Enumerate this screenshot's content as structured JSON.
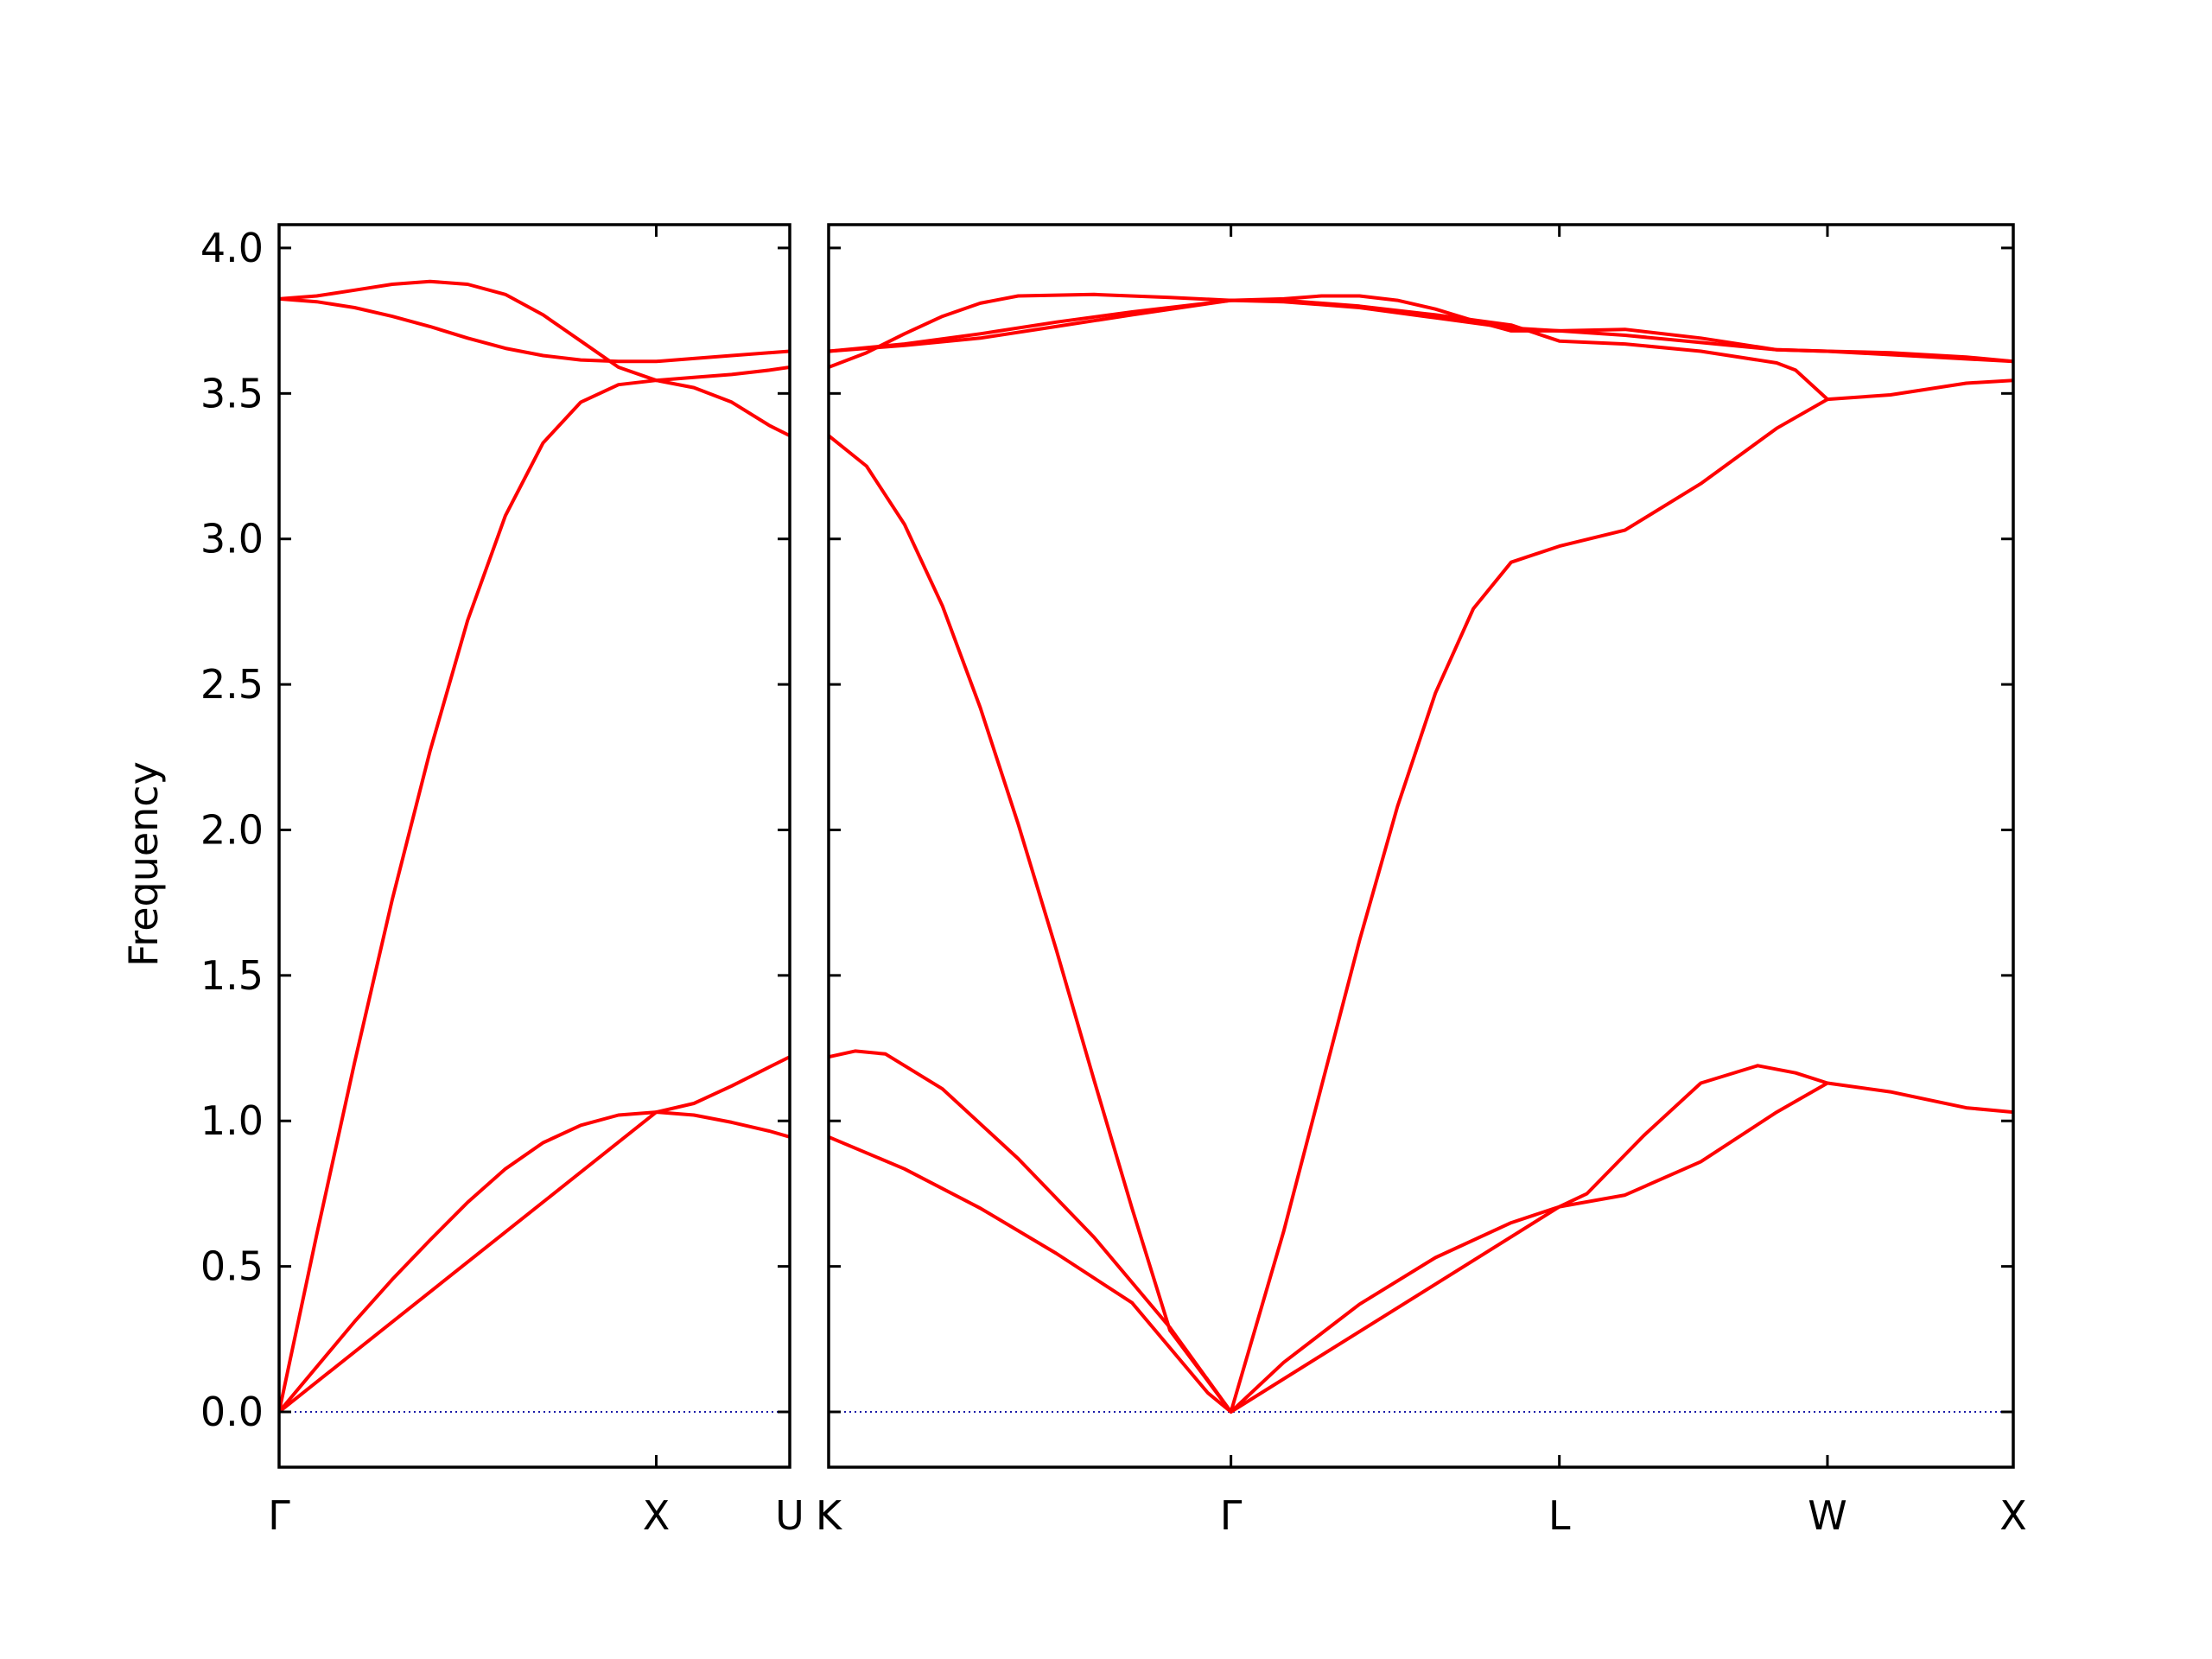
{
  "chart_data": {
    "type": "line",
    "title": "",
    "xlabel": "",
    "ylabel": "Frequency",
    "ylim": [
      -0.19,
      4.08
    ],
    "yticks": [
      0.0,
      0.5,
      1.0,
      1.5,
      2.0,
      2.5,
      3.0,
      3.5,
      4.0
    ],
    "ytick_labels": [
      "0.0",
      "0.5",
      "1.0",
      "1.5",
      "2.0",
      "2.5",
      "3.0",
      "3.5",
      "4.0"
    ],
    "line_color": "#ff0000",
    "zero_line_color": "#1a1aa8",
    "grid": false,
    "segments": [
      {
        "xlim": [
          0,
          1.354
        ],
        "ticks": [
          {
            "x": 0,
            "label": "Γ"
          },
          {
            "x": 1.0,
            "label": "X"
          },
          {
            "x": 1.354,
            "label": "U"
          }
        ],
        "bands": [
          [
            [
              0,
              0
            ],
            [
              0.1,
              0.155
            ],
            [
              0.2,
              0.31
            ],
            [
              0.3,
              0.455
            ],
            [
              0.4,
              0.59
            ],
            [
              0.5,
              0.72
            ],
            [
              0.6,
              0.835
            ],
            [
              0.7,
              0.925
            ],
            [
              0.8,
              0.985
            ],
            [
              0.9,
              1.02
            ],
            [
              1.0,
              1.03
            ],
            [
              1.1,
              1.02
            ],
            [
              1.2,
              0.995
            ],
            [
              1.3,
              0.965
            ],
            [
              1.354,
              0.945
            ]
          ],
          [
            [
              0,
              0
            ],
            [
              1.0,
              1.03
            ],
            [
              1.1,
              1.06
            ],
            [
              1.2,
              1.12
            ],
            [
              1.3,
              1.185
            ],
            [
              1.354,
              1.22
            ]
          ],
          [
            [
              0,
              0
            ],
            [
              0.1,
              0.61
            ],
            [
              0.2,
              1.2
            ],
            [
              0.3,
              1.76
            ],
            [
              0.4,
              2.27
            ],
            [
              0.5,
              2.72
            ],
            [
              0.6,
              3.08
            ],
            [
              0.7,
              3.33
            ],
            [
              0.8,
              3.47
            ],
            [
              0.9,
              3.53
            ],
            [
              1.0,
              3.545
            ],
            [
              1.1,
              3.52
            ],
            [
              1.2,
              3.47
            ],
            [
              1.3,
              3.39
            ],
            [
              1.354,
              3.355
            ]
          ],
          [
            [
              0,
              3.825
            ],
            [
              0.1,
              3.815
            ],
            [
              0.2,
              3.795
            ],
            [
              0.3,
              3.765
            ],
            [
              0.4,
              3.73
            ],
            [
              0.5,
              3.69
            ],
            [
              0.6,
              3.655
            ],
            [
              0.7,
              3.63
            ],
            [
              0.8,
              3.615
            ],
            [
              0.9,
              3.61
            ],
            [
              1.0,
              3.61
            ],
            [
              1.1,
              3.62
            ],
            [
              1.2,
              3.63
            ],
            [
              1.3,
              3.64
            ],
            [
              1.354,
              3.645
            ]
          ],
          [
            [
              0,
              3.825
            ],
            [
              0.1,
              3.835
            ],
            [
              0.2,
              3.855
            ],
            [
              0.3,
              3.875
            ],
            [
              0.4,
              3.885
            ],
            [
              0.5,
              3.875
            ],
            [
              0.6,
              3.84
            ],
            [
              0.7,
              3.77
            ],
            [
              0.8,
              3.68
            ],
            [
              0.9,
              3.59
            ],
            [
              1.0,
              3.545
            ],
            [
              1.1,
              3.555
            ],
            [
              1.2,
              3.565
            ],
            [
              1.3,
              3.58
            ],
            [
              1.354,
              3.59
            ]
          ]
        ]
      },
      {
        "xlim": [
          0,
          3.124
        ],
        "ticks": [
          {
            "x": 0,
            "label": "K"
          },
          {
            "x": 1.061,
            "label": "Γ"
          },
          {
            "x": 1.927,
            "label": "L"
          },
          {
            "x": 2.634,
            "label": "W"
          },
          {
            "x": 3.124,
            "label": "X"
          }
        ],
        "bands": [
          [
            [
              0,
              0.945
            ],
            [
              0.2,
              0.835
            ],
            [
              0.4,
              0.7
            ],
            [
              0.6,
              0.545
            ],
            [
              0.8,
              0.375
            ],
            [
              1.0,
              0.065
            ],
            [
              1.061,
              0
            ],
            [
              1.2,
              0.17
            ],
            [
              1.4,
              0.37
            ],
            [
              1.6,
              0.53
            ],
            [
              1.8,
              0.65
            ],
            [
              1.927,
              0.705
            ],
            [
              2.1,
              0.745
            ],
            [
              2.3,
              0.86
            ],
            [
              2.5,
              1.03
            ],
            [
              2.634,
              1.13
            ],
            [
              2.8,
              1.1
            ],
            [
              3.0,
              1.045
            ],
            [
              3.124,
              1.03
            ]
          ],
          [
            [
              0,
              1.22
            ],
            [
              0.07,
              1.24
            ],
            [
              0.15,
              1.23
            ],
            [
              0.3,
              1.11
            ],
            [
              0.5,
              0.87
            ],
            [
              0.7,
              0.6
            ],
            [
              0.9,
              0.29
            ],
            [
              1.061,
              0
            ],
            [
              1.927,
              0.705
            ],
            [
              2.0,
              0.75
            ],
            [
              2.15,
              0.95
            ],
            [
              2.3,
              1.13
            ],
            [
              2.45,
              1.19
            ],
            [
              2.55,
              1.165
            ],
            [
              2.634,
              1.13
            ]
          ],
          [
            [
              0,
              3.355
            ],
            [
              0.1,
              3.25
            ],
            [
              0.2,
              3.05
            ],
            [
              0.3,
              2.77
            ],
            [
              0.4,
              2.42
            ],
            [
              0.5,
              2.02
            ],
            [
              0.6,
              1.59
            ],
            [
              0.7,
              1.14
            ],
            [
              0.8,
              0.7
            ],
            [
              0.9,
              0.28
            ],
            [
              1.061,
              0
            ],
            [
              1.2,
              0.62
            ],
            [
              1.3,
              1.12
            ],
            [
              1.4,
              1.62
            ],
            [
              1.5,
              2.08
            ],
            [
              1.6,
              2.47
            ],
            [
              1.7,
              2.76
            ],
            [
              1.8,
              2.92
            ],
            [
              1.927,
              2.975
            ],
            [
              2.1,
              3.03
            ],
            [
              2.3,
              3.19
            ],
            [
              2.5,
              3.38
            ],
            [
              2.634,
              3.48
            ],
            [
              2.8,
              3.495
            ],
            [
              3.0,
              3.535
            ],
            [
              3.124,
              3.545
            ]
          ],
          [
            [
              0,
              3.59
            ],
            [
              0.1,
              3.64
            ],
            [
              0.2,
              3.705
            ],
            [
              0.3,
              3.765
            ],
            [
              0.4,
              3.81
            ],
            [
              0.5,
              3.835
            ],
            [
              0.7,
              3.84
            ],
            [
              0.9,
              3.83
            ],
            [
              1.061,
              3.82
            ],
            [
              1.2,
              3.825
            ],
            [
              1.3,
              3.835
            ],
            [
              1.4,
              3.835
            ],
            [
              1.5,
              3.82
            ],
            [
              1.6,
              3.79
            ],
            [
              1.7,
              3.75
            ],
            [
              1.8,
              3.715
            ],
            [
              1.927,
              3.715
            ],
            [
              2.1,
              3.72
            ],
            [
              2.3,
              3.69
            ],
            [
              2.5,
              3.65
            ],
            [
              2.634,
              3.645
            ],
            [
              2.8,
              3.64
            ],
            [
              3.0,
              3.625
            ],
            [
              3.124,
              3.61
            ]
          ],
          [
            [
              0,
              3.645
            ],
            [
              0.2,
              3.67
            ],
            [
              0.4,
              3.705
            ],
            [
              0.6,
              3.745
            ],
            [
              0.8,
              3.78
            ],
            [
              1.061,
              3.82
            ],
            [
              1.2,
              3.815
            ],
            [
              1.4,
              3.795
            ],
            [
              1.6,
              3.76
            ],
            [
              1.8,
              3.725
            ],
            [
              1.927,
              3.715
            ],
            [
              2.1,
              3.7
            ],
            [
              2.3,
              3.675
            ],
            [
              2.5,
              3.65
            ],
            [
              2.634,
              3.645
            ],
            [
              3.124,
              3.61
            ]
          ],
          [
            [
              0,
              3.645
            ],
            [
              0.2,
              3.665
            ],
            [
              0.4,
              3.69
            ],
            [
              0.6,
              3.73
            ],
            [
              0.8,
              3.77
            ],
            [
              1.061,
              3.82
            ],
            [
              1.2,
              3.82
            ],
            [
              1.4,
              3.8
            ],
            [
              1.6,
              3.77
            ],
            [
              1.8,
              3.735
            ],
            [
              1.927,
              3.68
            ],
            [
              2.1,
              3.67
            ],
            [
              2.3,
              3.645
            ],
            [
              2.5,
              3.605
            ],
            [
              2.55,
              3.58
            ],
            [
              2.634,
              3.48
            ]
          ]
        ]
      }
    ]
  }
}
